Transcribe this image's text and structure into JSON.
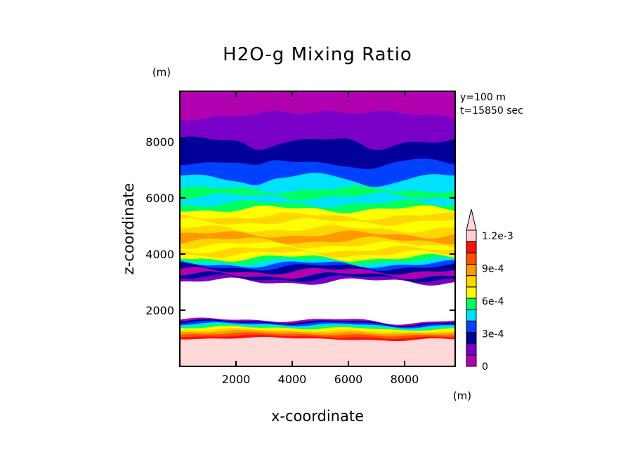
{
  "header": {
    "title": "H2O-g Mixing Ratio",
    "info_y": "y=100 m",
    "info_t": "t=15850 sec"
  },
  "axes": {
    "xlabel": "x-coordinate",
    "ylabel": "z-coordinate",
    "x_unit": "(m)",
    "y_unit": "(m)"
  },
  "chart_data": {
    "type": "heatmap",
    "title": "H2O-g Mixing Ratio",
    "xlabel": "x-coordinate",
    "ylabel": "z-coordinate",
    "xlim": [
      0,
      9800
    ],
    "ylim": [
      0,
      9800
    ],
    "x_ticks": [
      "2000",
      "4000",
      "6000",
      "8000"
    ],
    "y_ticks": [
      "2000",
      "4000",
      "6000",
      "8000"
    ],
    "x_tick_values": [
      2000,
      4000,
      6000,
      8000
    ],
    "y_tick_values": [
      2000,
      4000,
      6000,
      8000
    ],
    "colorbar": {
      "levels": [
        0,
        0.00015,
        0.0003,
        0.00045,
        0.0006,
        0.00075,
        0.0009,
        0.00105,
        0.0012
      ],
      "labels": [
        "0",
        "3e-4",
        "6e-4",
        "9e-4",
        "1.2e-3"
      ],
      "label_values": [
        0,
        0.0003,
        0.0006,
        0.0009,
        0.0012
      ],
      "colors": [
        "#b000b0",
        "#7a00c8",
        "#000098",
        "#0040ff",
        "#00e0ff",
        "#00ff60",
        "#ffff00",
        "#ffd700",
        "#ff9900",
        "#ff5000",
        "#ff1010",
        "#ffd0d0"
      ],
      "extend": "max"
    },
    "bands": [
      {
        "z_top": 1000,
        "color": "#ffd8d8"
      },
      {
        "z_top": 1080,
        "color": "#ff1010"
      },
      {
        "z_top": 1160,
        "color": "#ff5000"
      },
      {
        "z_top": 1240,
        "color": "#ff9900"
      },
      {
        "z_top": 1310,
        "color": "#ffd700"
      },
      {
        "z_top": 1380,
        "color": "#ffff00"
      },
      {
        "z_top": 1440,
        "color": "#00ff60"
      },
      {
        "z_top": 1500,
        "color": "#00e0ff"
      },
      {
        "z_top": 1560,
        "color": "#0040ff"
      },
      {
        "z_top": 1610,
        "color": "#000098"
      },
      {
        "z_top": 1660,
        "color": "#b000b0"
      },
      {
        "z_top": 3020,
        "color": "#ffffff"
      },
      {
        "z_top": 3130,
        "color": "#7a00c8"
      },
      {
        "z_top": 3240,
        "color": "#000098"
      },
      {
        "z_top": 3400,
        "color": "#b000b0"
      },
      {
        "z_top": 3540,
        "color": "#000098"
      },
      {
        "z_top": 3640,
        "color": "#0040ff"
      },
      {
        "z_top": 3740,
        "color": "#00e0ff"
      },
      {
        "z_top": 3860,
        "color": "#00ff60"
      },
      {
        "z_top": 4000,
        "color": "#ffff00"
      },
      {
        "z_top": 4160,
        "color": "#ffd700"
      },
      {
        "z_top": 4320,
        "color": "#ffff00"
      },
      {
        "z_top": 4480,
        "color": "#ffd700"
      },
      {
        "z_top": 4700,
        "color": "#ff9900"
      },
      {
        "z_top": 4900,
        "color": "#ffd700"
      },
      {
        "z_top": 5150,
        "color": "#ffff00"
      },
      {
        "z_top": 5350,
        "color": "#ffd700"
      },
      {
        "z_top": 5600,
        "color": "#ffff00"
      },
      {
        "z_top": 5800,
        "color": "#00ff60"
      },
      {
        "z_top": 6050,
        "color": "#00e0ff"
      },
      {
        "z_top": 6300,
        "color": "#00ff60"
      },
      {
        "z_top": 6750,
        "color": "#00e0ff"
      },
      {
        "z_top": 7300,
        "color": "#0040ff"
      },
      {
        "z_top": 8050,
        "color": "#000098"
      },
      {
        "z_top": 8900,
        "color": "#7a00c8"
      },
      {
        "z_top": 9800,
        "color": "#b000b0"
      }
    ]
  }
}
